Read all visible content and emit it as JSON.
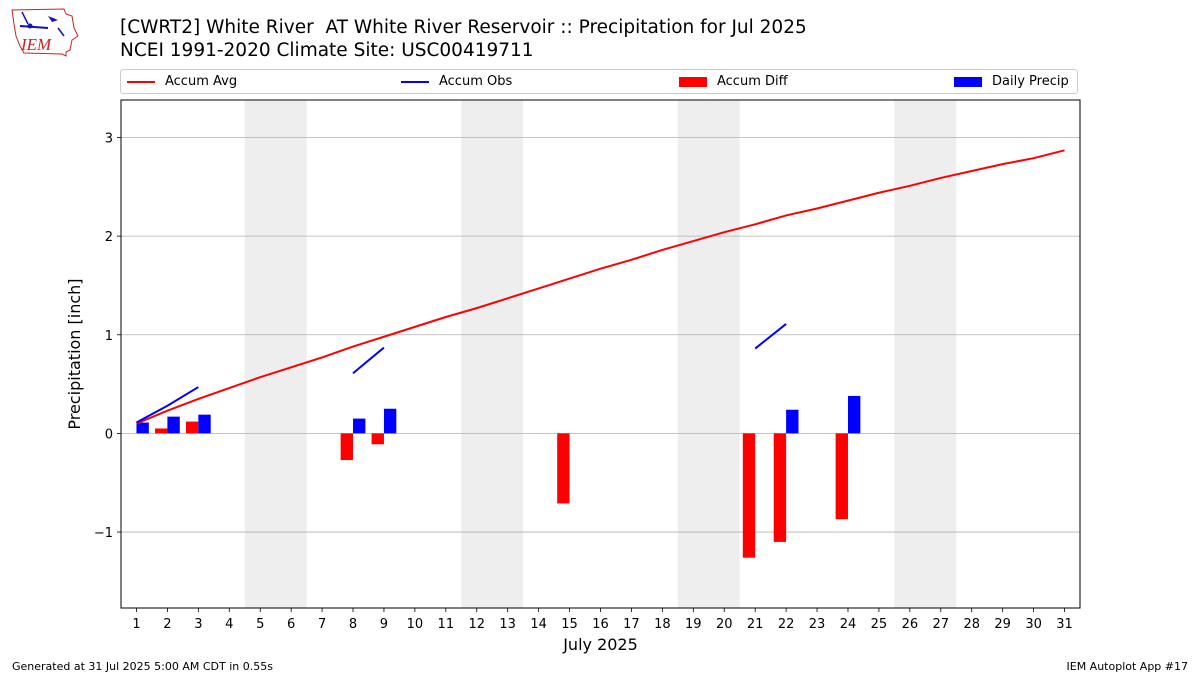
{
  "header": {
    "title_line1": "[CWRT2] White River  AT White River Reservoir :: Precipitation for Jul 2025",
    "title_line2": "NCEI 1991-2020 Climate Site: USC00419711"
  },
  "logo": {
    "text": "IEM"
  },
  "legend": {
    "items": [
      {
        "label": "Accum Avg",
        "color": "#ff0000",
        "kind": "line"
      },
      {
        "label": "Accum Obs",
        "color": "#0000ff",
        "kind": "line"
      },
      {
        "label": "Accum Diff",
        "color": "#ff0000",
        "kind": "box"
      },
      {
        "label": "Daily Precip",
        "color": "#0000ff",
        "kind": "box"
      }
    ]
  },
  "footer": {
    "left": "Generated at 31 Jul 2025 5:00 AM CDT in 0.55s",
    "right": "IEM Autoplot App #17"
  },
  "chart_data": {
    "type": "bar",
    "xlabel": "July 2025",
    "ylabel": "Precipitation [inch]",
    "xlim": [
      0.5,
      31.5
    ],
    "ylim": [
      -1.77,
      3.38
    ],
    "yticks": [
      -1,
      0,
      1,
      2,
      3
    ],
    "ytick_labels": [
      "−1",
      "0",
      "1",
      "2",
      "3"
    ],
    "days": [
      1,
      2,
      3,
      4,
      5,
      6,
      7,
      8,
      9,
      10,
      11,
      12,
      13,
      14,
      15,
      16,
      17,
      18,
      19,
      20,
      21,
      22,
      23,
      24,
      25,
      26,
      27,
      28,
      29,
      30,
      31
    ],
    "weekend_shading": [
      [
        4.5,
        6.5
      ],
      [
        11.5,
        13.5
      ],
      [
        18.5,
        20.5
      ],
      [
        25.5,
        27.5
      ]
    ],
    "grid": "horizontal",
    "colors": {
      "avg": "#ff0000",
      "obs": "#0000ff",
      "shade": "#eeeeee",
      "grid": "#b0b0b0"
    },
    "accum_avg": [
      0.1,
      0.23,
      0.35,
      0.46,
      0.57,
      0.67,
      0.77,
      0.88,
      0.98,
      1.08,
      1.18,
      1.27,
      1.37,
      1.47,
      1.57,
      1.67,
      1.76,
      1.86,
      1.95,
      2.04,
      2.12,
      2.21,
      2.28,
      2.36,
      2.44,
      2.51,
      2.59,
      2.66,
      2.73,
      2.79,
      2.87
    ],
    "accum_obs_segments": [
      {
        "x": [
          1,
          2,
          3
        ],
        "y": [
          0.11,
          0.28,
          0.47
        ]
      },
      {
        "x": [
          8,
          9
        ],
        "y": [
          0.61,
          0.87
        ]
      },
      {
        "x": [
          21,
          22
        ],
        "y": [
          0.86,
          1.11
        ]
      }
    ],
    "accum_diff": [
      {
        "day": 2,
        "value": 0.05
      },
      {
        "day": 3,
        "value": 0.12
      },
      {
        "day": 8,
        "value": -0.27
      },
      {
        "day": 9,
        "value": -0.11
      },
      {
        "day": 15,
        "value": -0.71
      },
      {
        "day": 21,
        "value": -1.26
      },
      {
        "day": 22,
        "value": -1.1
      },
      {
        "day": 24,
        "value": -0.87
      }
    ],
    "daily_precip": [
      {
        "day": 1,
        "value": 0.11
      },
      {
        "day": 2,
        "value": 0.17
      },
      {
        "day": 3,
        "value": 0.19
      },
      {
        "day": 8,
        "value": 0.15
      },
      {
        "day": 9,
        "value": 0.25
      },
      {
        "day": 22,
        "value": 0.24
      },
      {
        "day": 24,
        "value": 0.38
      }
    ]
  }
}
